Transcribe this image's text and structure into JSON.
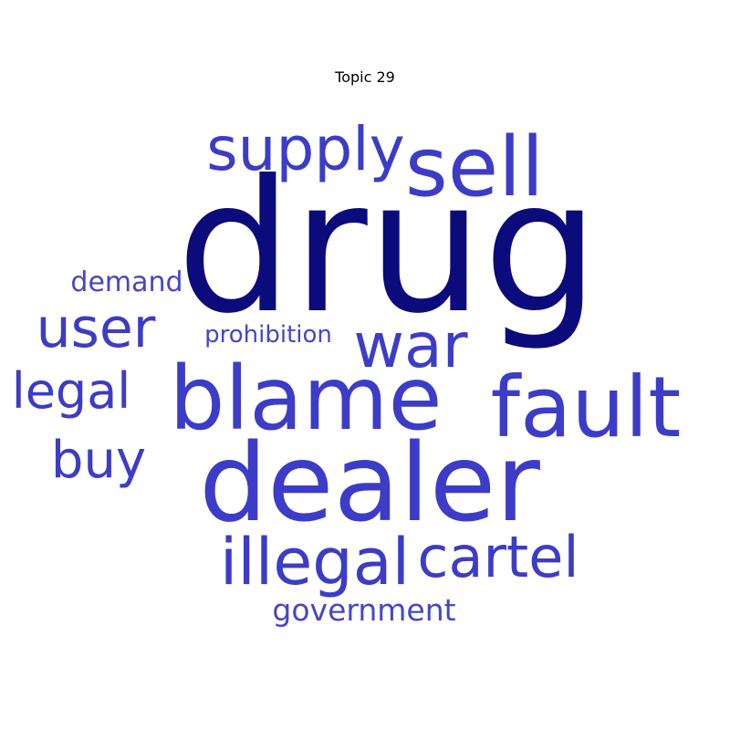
{
  "chart_data": {
    "type": "wordcloud",
    "title": "Topic 29",
    "words": [
      {
        "text": "drug",
        "color": "#0b0b7c"
      },
      {
        "text": "dealer",
        "color": "#3c3cc8"
      },
      {
        "text": "blame",
        "color": "#3c3cc8"
      },
      {
        "text": "fault",
        "color": "#3c3cc8"
      },
      {
        "text": "sell",
        "color": "#3c3cc8"
      },
      {
        "text": "supply",
        "color": "#3c3cc8"
      },
      {
        "text": "war",
        "color": "#3c3cc8"
      },
      {
        "text": "user",
        "color": "#3c3cc8"
      },
      {
        "text": "illegal",
        "color": "#3c3cc8"
      },
      {
        "text": "cartel",
        "color": "#3c3cc8"
      },
      {
        "text": "legal",
        "color": "#3c3cc8"
      },
      {
        "text": "buy",
        "color": "#3c3cc8"
      },
      {
        "text": "government",
        "color": "#4646c8"
      },
      {
        "text": "demand",
        "color": "#4646c8"
      },
      {
        "text": "prohibition",
        "color": "#4646c8"
      }
    ]
  }
}
